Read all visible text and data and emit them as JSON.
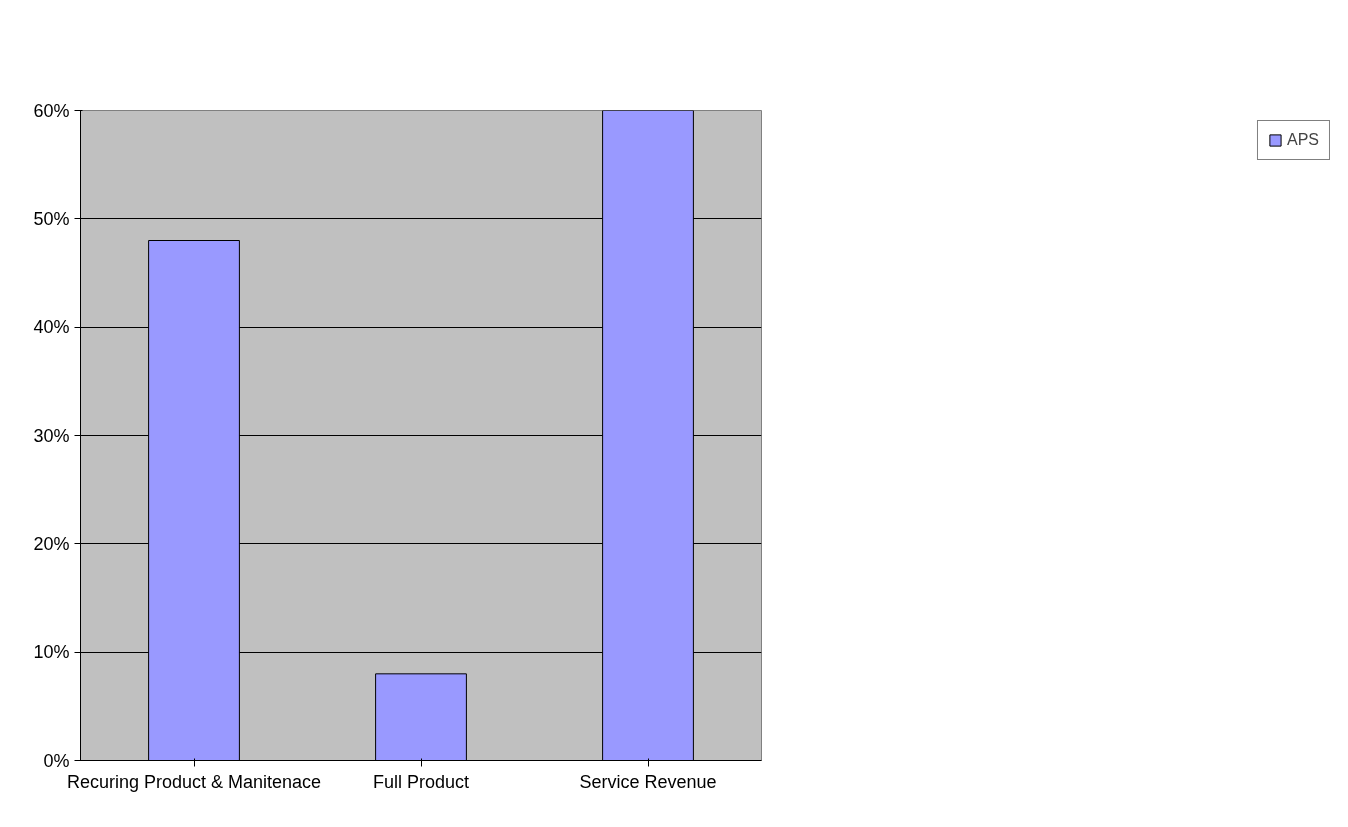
{
  "chart_data": {
    "type": "bar",
    "categories": [
      "Recuring Product & Manitenace",
      "Full Product",
      "Service Revenue"
    ],
    "series": [
      {
        "name": "APS",
        "color": "#9999ff",
        "values": [
          48,
          8,
          60
        ]
      }
    ],
    "ylim": [
      0,
      60
    ],
    "yticks": [
      {
        "value": 0,
        "label": "0%"
      },
      {
        "value": 10,
        "label": "10%"
      },
      {
        "value": 20,
        "label": "20%"
      },
      {
        "value": 30,
        "label": "30%"
      },
      {
        "value": 40,
        "label": "40%"
      },
      {
        "value": 50,
        "label": "50%"
      },
      {
        "value": 60,
        "label": "60%"
      }
    ],
    "grid": "y",
    "legend": "right"
  }
}
